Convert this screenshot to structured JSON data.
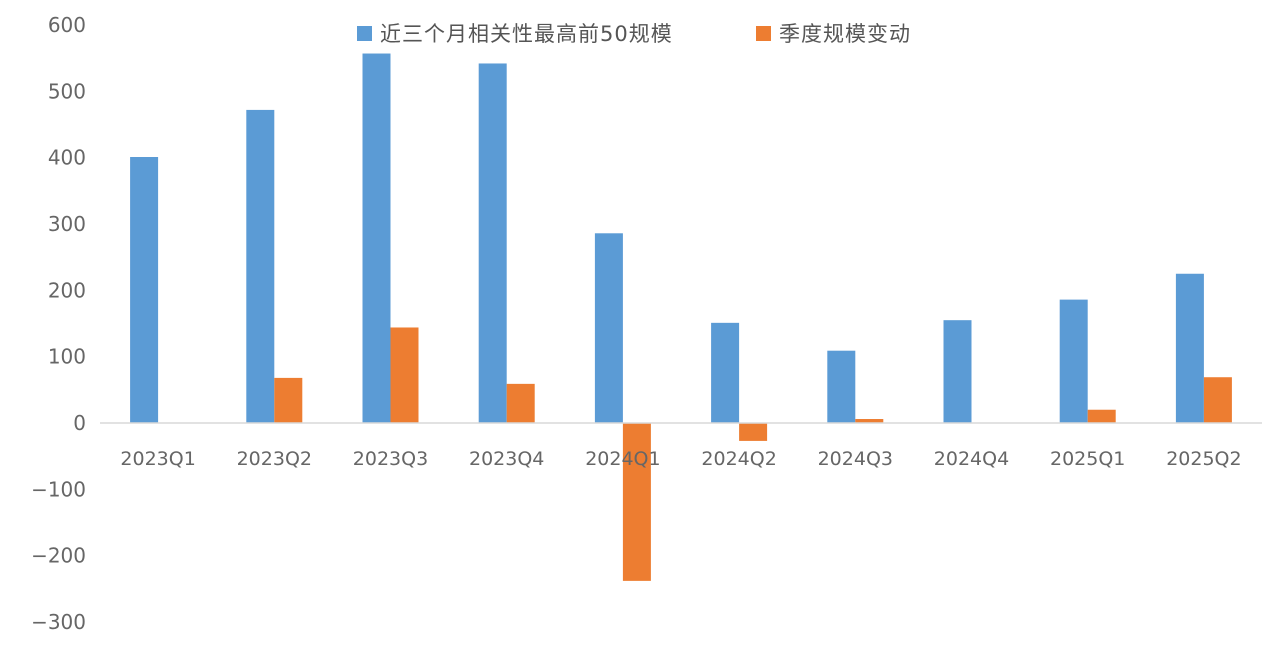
{
  "chart_data": {
    "type": "bar",
    "categories": [
      "2023Q1",
      "2023Q2",
      "2023Q3",
      "2023Q4",
      "2024Q1",
      "2024Q2",
      "2024Q3",
      "2024Q4",
      "2025Q1",
      "2025Q2"
    ],
    "series": [
      {
        "name": "近三个月相关性最高前50规模",
        "color": "#5B9BD5",
        "values": [
          401,
          472,
          557,
          542,
          286,
          151,
          109,
          155,
          186,
          225
        ]
      },
      {
        "name": "季度规模变动",
        "color": "#ED7D31",
        "values": [
          0,
          68,
          144,
          59,
          -238,
          -27,
          6,
          0,
          20,
          69
        ]
      }
    ],
    "ylim": [
      -300,
      600
    ],
    "yticks": [
      600,
      500,
      400,
      300,
      200,
      100,
      0,
      -100,
      -200,
      -300
    ],
    "grid": false,
    "legend_position": "top-center",
    "xlabel": "",
    "ylabel": "",
    "title": ""
  }
}
